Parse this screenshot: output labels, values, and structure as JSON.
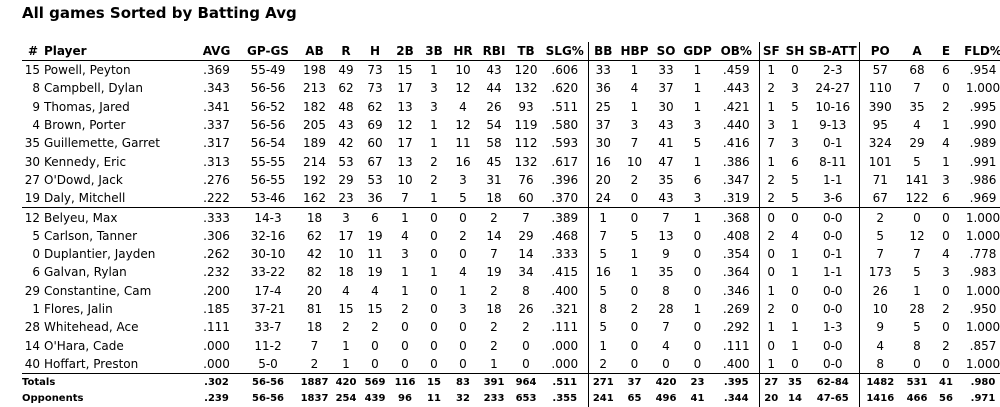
{
  "title": "All games Sorted by Batting Avg",
  "table": {
    "columns": [
      "#",
      "Player",
      "AVG",
      "GP-GS",
      "AB",
      "R",
      "H",
      "2B",
      "3B",
      "HR",
      "RBI",
      "TB",
      "SLG%",
      "BB",
      "HBP",
      "SO",
      "GDP",
      "OB%",
      "SF",
      "SH",
      "SB-ATT",
      "PO",
      "A",
      "E",
      "FLD%"
    ],
    "rows": [
      [
        "15",
        "Powell, Peyton",
        ".369",
        "55-49",
        "198",
        "49",
        "73",
        "15",
        "1",
        "10",
        "43",
        "120",
        ".606",
        "33",
        "1",
        "33",
        "1",
        ".459",
        "1",
        "0",
        "2-3",
        "57",
        "68",
        "6",
        ".954"
      ],
      [
        "8",
        "Campbell, Dylan",
        ".343",
        "56-56",
        "213",
        "62",
        "73",
        "17",
        "3",
        "12",
        "44",
        "132",
        ".620",
        "36",
        "4",
        "37",
        "1",
        ".443",
        "2",
        "3",
        "24-27",
        "110",
        "7",
        "0",
        "1.000"
      ],
      [
        "9",
        "Thomas, Jared",
        ".341",
        "56-52",
        "182",
        "48",
        "62",
        "13",
        "3",
        "4",
        "26",
        "93",
        ".511",
        "25",
        "1",
        "30",
        "1",
        ".421",
        "1",
        "5",
        "10-16",
        "390",
        "35",
        "2",
        ".995"
      ],
      [
        "4",
        "Brown, Porter",
        ".337",
        "56-56",
        "205",
        "43",
        "69",
        "12",
        "1",
        "12",
        "54",
        "119",
        ".580",
        "37",
        "3",
        "43",
        "3",
        ".440",
        "3",
        "1",
        "9-13",
        "95",
        "4",
        "1",
        ".990"
      ],
      [
        "35",
        "Guillemette, Garret",
        ".317",
        "56-54",
        "189",
        "42",
        "60",
        "17",
        "1",
        "11",
        "58",
        "112",
        ".593",
        "30",
        "7",
        "41",
        "5",
        ".416",
        "7",
        "3",
        "0-1",
        "324",
        "29",
        "4",
        ".989"
      ],
      [
        "30",
        "Kennedy, Eric",
        ".313",
        "55-55",
        "214",
        "53",
        "67",
        "13",
        "2",
        "16",
        "45",
        "132",
        ".617",
        "16",
        "10",
        "47",
        "1",
        ".386",
        "1",
        "6",
        "8-11",
        "101",
        "5",
        "1",
        ".991"
      ],
      [
        "27",
        "O'Dowd, Jack",
        ".276",
        "56-55",
        "192",
        "29",
        "53",
        "10",
        "2",
        "3",
        "31",
        "76",
        ".396",
        "20",
        "2",
        "35",
        "6",
        ".347",
        "2",
        "5",
        "1-1",
        "71",
        "141",
        "3",
        ".986"
      ],
      [
        "19",
        "Daly, Mitchell",
        ".222",
        "53-46",
        "162",
        "23",
        "36",
        "7",
        "1",
        "5",
        "18",
        "60",
        ".370",
        "24",
        "0",
        "43",
        "3",
        ".319",
        "2",
        "5",
        "3-6",
        "67",
        "122",
        "6",
        ".969"
      ],
      [
        "12",
        "Belyeu, Max",
        ".333",
        "14-3",
        "18",
        "3",
        "6",
        "1",
        "0",
        "0",
        "2",
        "7",
        ".389",
        "1",
        "0",
        "7",
        "1",
        ".368",
        "0",
        "0",
        "0-0",
        "2",
        "0",
        "0",
        "1.000"
      ],
      [
        "5",
        "Carlson, Tanner",
        ".306",
        "32-16",
        "62",
        "17",
        "19",
        "4",
        "0",
        "2",
        "14",
        "29",
        ".468",
        "7",
        "5",
        "13",
        "0",
        ".408",
        "2",
        "4",
        "0-0",
        "5",
        "12",
        "0",
        "1.000"
      ],
      [
        "0",
        "Duplantier, Jayden",
        ".262",
        "30-10",
        "42",
        "10",
        "11",
        "3",
        "0",
        "0",
        "7",
        "14",
        ".333",
        "5",
        "1",
        "9",
        "0",
        ".354",
        "0",
        "1",
        "0-1",
        "7",
        "7",
        "4",
        ".778"
      ],
      [
        "6",
        "Galvan, Rylan",
        ".232",
        "33-22",
        "82",
        "18",
        "19",
        "1",
        "1",
        "4",
        "19",
        "34",
        ".415",
        "16",
        "1",
        "35",
        "0",
        ".364",
        "0",
        "1",
        "1-1",
        "173",
        "5",
        "3",
        ".983"
      ],
      [
        "29",
        "Constantine, Cam",
        ".200",
        "17-4",
        "20",
        "4",
        "4",
        "1",
        "0",
        "1",
        "2",
        "8",
        ".400",
        "5",
        "0",
        "8",
        "0",
        ".346",
        "1",
        "0",
        "0-0",
        "26",
        "1",
        "0",
        "1.000"
      ],
      [
        "1",
        "Flores, Jalin",
        ".185",
        "37-21",
        "81",
        "15",
        "15",
        "2",
        "0",
        "3",
        "18",
        "26",
        ".321",
        "8",
        "2",
        "28",
        "1",
        ".269",
        "2",
        "0",
        "0-0",
        "10",
        "28",
        "2",
        ".950"
      ],
      [
        "28",
        "Whitehead, Ace",
        ".111",
        "33-7",
        "18",
        "2",
        "2",
        "0",
        "0",
        "0",
        "2",
        "2",
        ".111",
        "5",
        "0",
        "7",
        "0",
        ".292",
        "1",
        "1",
        "1-3",
        "9",
        "5",
        "0",
        "1.000"
      ],
      [
        "14",
        "O'Hara, Cade",
        ".000",
        "11-2",
        "7",
        "1",
        "0",
        "0",
        "0",
        "0",
        "2",
        "0",
        ".000",
        "1",
        "0",
        "4",
        "0",
        ".111",
        "0",
        "1",
        "0-0",
        "4",
        "8",
        "2",
        ".857"
      ],
      [
        "40",
        "Hoffart, Preston",
        ".000",
        "5-0",
        "2",
        "1",
        "0",
        "0",
        "0",
        "0",
        "1",
        "0",
        ".000",
        "2",
        "0",
        "0",
        "0",
        ".400",
        "1",
        "0",
        "0-0",
        "8",
        "0",
        "0",
        "1.000"
      ]
    ],
    "totals": [
      [
        "Totals",
        ".302",
        "56-56",
        "1887",
        "420",
        "569",
        "116",
        "15",
        "83",
        "391",
        "964",
        ".511",
        "271",
        "37",
        "420",
        "23",
        ".395",
        "27",
        "35",
        "62-84",
        "1482",
        "531",
        "41",
        ".980"
      ],
      [
        "Opponents",
        ".239",
        "56-56",
        "1837",
        "254",
        "439",
        "96",
        "11",
        "32",
        "233",
        "653",
        ".355",
        "241",
        "65",
        "496",
        "41",
        ".344",
        "20",
        "14",
        "47-65",
        "1416",
        "466",
        "56",
        ".971"
      ]
    ]
  }
}
